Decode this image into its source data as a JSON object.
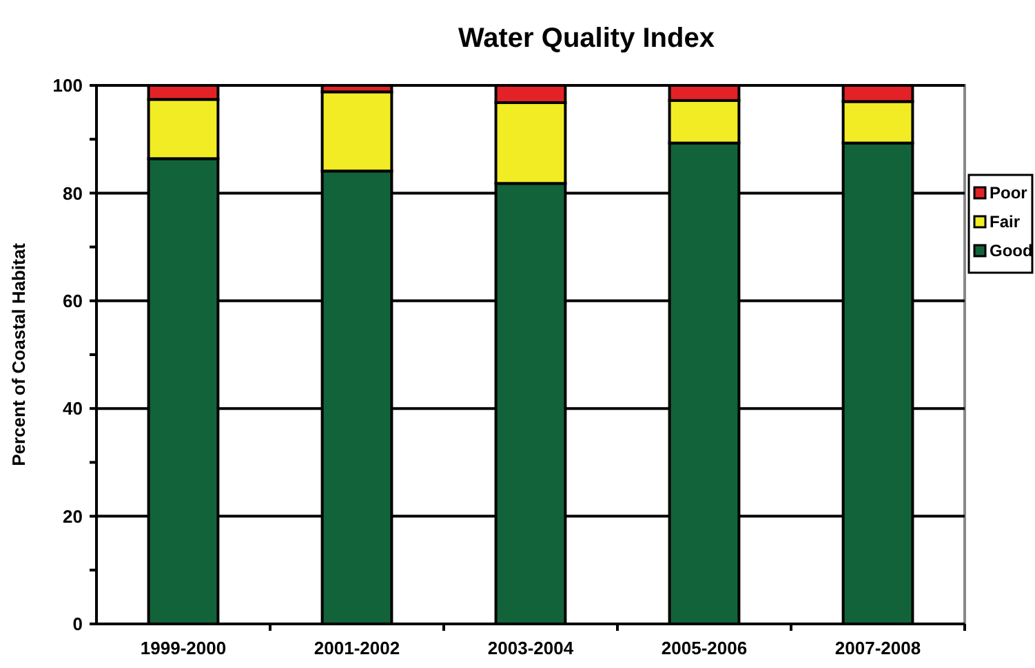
{
  "chart_data": {
    "type": "bar",
    "title": "Water Quality Index",
    "ylabel": "Percent of Coastal Habitat",
    "categories": [
      "1999-2000",
      "2001-2002",
      "2003-2004",
      "2005-2006",
      "2007-2008"
    ],
    "stacked": true,
    "ylim": [
      0,
      100
    ],
    "yticks": [
      0,
      {
        "value": 10,
        "label": null
      },
      20,
      {
        "value": 30,
        "label": null
      },
      40,
      {
        "value": 50,
        "label": null
      },
      60,
      {
        "value": 70,
        "label": null
      },
      80,
      {
        "value": 90,
        "label": null
      },
      100
    ],
    "grid": "y",
    "legend": "right",
    "series": [
      {
        "name": "Good",
        "color": "#12633a",
        "values": [
          86.4,
          84.1,
          81.8,
          89.3,
          89.3
        ]
      },
      {
        "name": "Fair",
        "color": "#f2ec24",
        "values": [
          11.0,
          14.7,
          15.0,
          7.9,
          7.7
        ]
      },
      {
        "name": "Poor",
        "color": "#e32227",
        "values": [
          2.6,
          1.2,
          3.2,
          2.8,
          3.0
        ]
      }
    ]
  }
}
